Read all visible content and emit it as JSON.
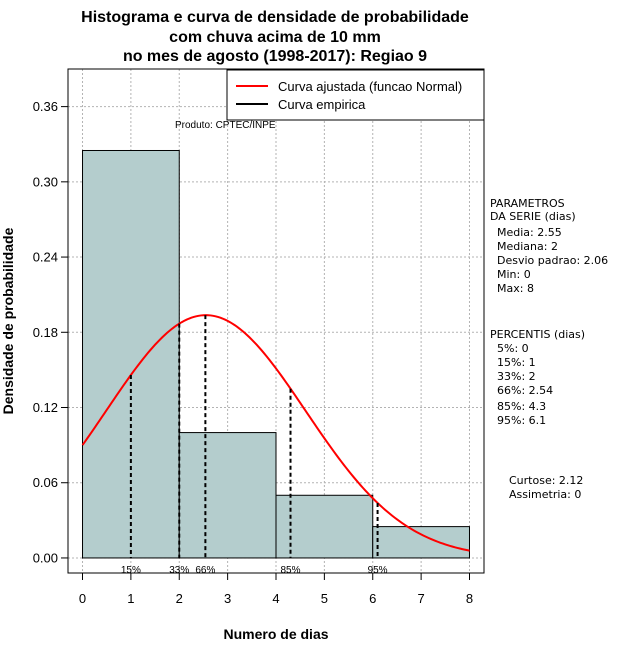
{
  "chart_data": {
    "type": "bar",
    "title_lines": [
      "Histograma e curva de densidade de probabilidade",
      "com chuva acima de 10 mm",
      "no mes de agosto (1998-2017): Regiao 9"
    ],
    "xlabel": "Numero de dias",
    "ylabel": "Densidade de probabilidade",
    "xlim": [
      -0.3,
      8.3
    ],
    "ylim": [
      -0.012,
      0.39
    ],
    "x_ticks": [
      0,
      1,
      2,
      3,
      4,
      5,
      6,
      7,
      8
    ],
    "y_ticks": [
      0.0,
      0.06,
      0.12,
      0.18,
      0.24,
      0.3,
      0.36
    ],
    "y_tick_labels": [
      "0.00",
      "0.06",
      "0.12",
      "0.18",
      "0.24",
      "0.30",
      "0.36"
    ],
    "bins": [
      {
        "from": 0,
        "to": 2,
        "density": 0.325
      },
      {
        "from": 2,
        "to": 4,
        "density": 0.1
      },
      {
        "from": 4,
        "to": 6,
        "density": 0.05
      },
      {
        "from": 6,
        "to": 8,
        "density": 0.025
      }
    ],
    "curve": {
      "name": "Curva ajustada (funcao Normal)",
      "mean": 2.55,
      "sd": 2.06,
      "color": "#ff0000"
    },
    "empirical_name": "Curva empirica",
    "percentile_markers": [
      {
        "label": "15%",
        "x": 1
      },
      {
        "label": "33%",
        "x": 2
      },
      {
        "label": "66%",
        "x": 2.54
      },
      {
        "label": "85%",
        "x": 4.3
      },
      {
        "label": "95%",
        "x": 6.1
      }
    ],
    "bar_color": "#b4cdcd",
    "grid": true,
    "legend_position": "top-right"
  },
  "credit": "Produto: CPTEC/INPE",
  "parametros": {
    "heading": [
      "PARAMETROS",
      "DA SERIE (dias)"
    ],
    "items": [
      "Media: 2.55",
      "Mediana: 2",
      "Desvio padrao: 2.06",
      "Min: 0",
      "Max: 8"
    ]
  },
  "percentis": {
    "heading": "PERCENTIS (dias)",
    "items": [
      "5%: 0",
      "15%: 1",
      "33%: 2",
      "66%: 2.54",
      "85%: 4.3",
      "95%: 6.1"
    ]
  },
  "shape": {
    "curtose": "Curtose: 2.12",
    "assimetria": "Assimetria: 0"
  }
}
